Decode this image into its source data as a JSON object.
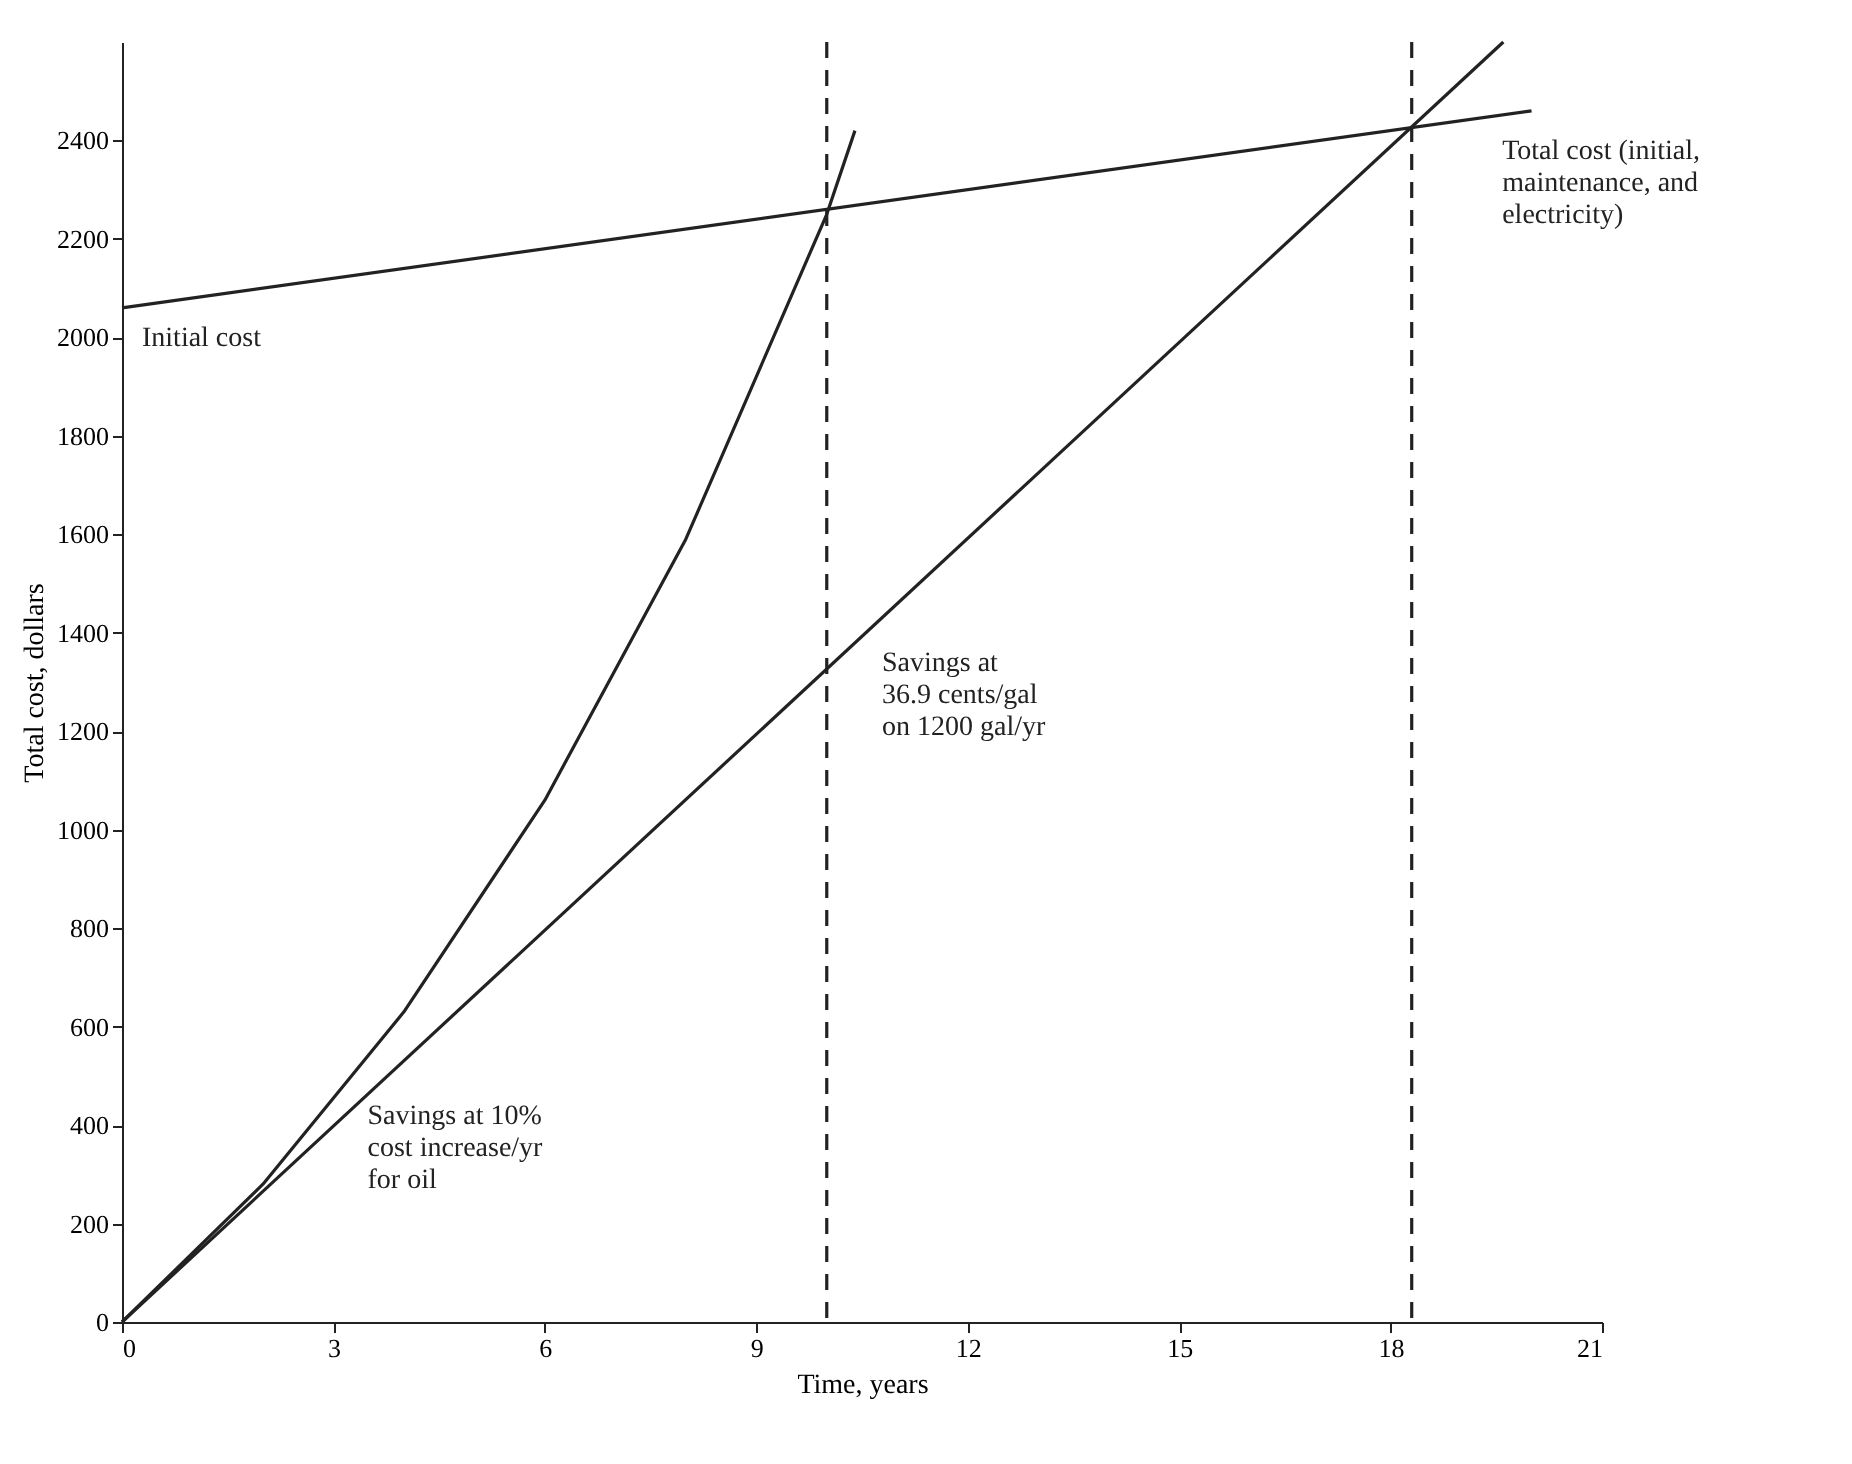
{
  "chart_data": {
    "type": "line",
    "xlabel": "Time, years",
    "ylabel": "Total cost, dollars",
    "series": [
      {
        "color": "#222222",
        "x": [
          0,
          20
        ],
        "values": [
          2060,
          2460
        ]
      },
      {
        "color": "#222222",
        "x": [
          0,
          19.6
        ],
        "values": [
          0,
          2600
        ]
      },
      {
        "color": "#222222",
        "x": [
          0,
          2,
          4,
          6,
          8,
          10,
          10.4
        ],
        "values": [
          0,
          280,
          630,
          1060,
          1590,
          2250,
          2420
        ]
      }
    ],
    "xlim": [
      0,
      21
    ],
    "xticks": [
      0,
      3,
      6,
      9,
      12,
      15,
      18,
      21
    ],
    "ylim": [
      0,
      2600
    ],
    "yticks": [
      0,
      200,
      400,
      600,
      800,
      1000,
      1200,
      1400,
      1600,
      1800,
      2000,
      2200,
      2400
    ],
    "ref_lines": [
      {
        "axis": "x",
        "value": 10,
        "line_style": "dashed"
      },
      {
        "axis": "x",
        "value": 18.3,
        "line_style": "dashed"
      }
    ],
    "annotations": [
      {
        "text": "Initial cost",
        "x": 0,
        "y": 2060
      },
      {
        "text": "Total cost (initial,\nmaintenance, and\nelectricity)",
        "x": 19.3,
        "y": 2440
      },
      {
        "text": "Savings at\n36.9 cents/gal\non 1200 gal/yr",
        "x": 10.5,
        "y": 1400
      },
      {
        "text": "Savings at 10%\ncost increase/yr\nfor oil",
        "x": 3.2,
        "y": 480
      }
    ],
    "grid": false,
    "marker": "none",
    "line_style": "solid"
  }
}
